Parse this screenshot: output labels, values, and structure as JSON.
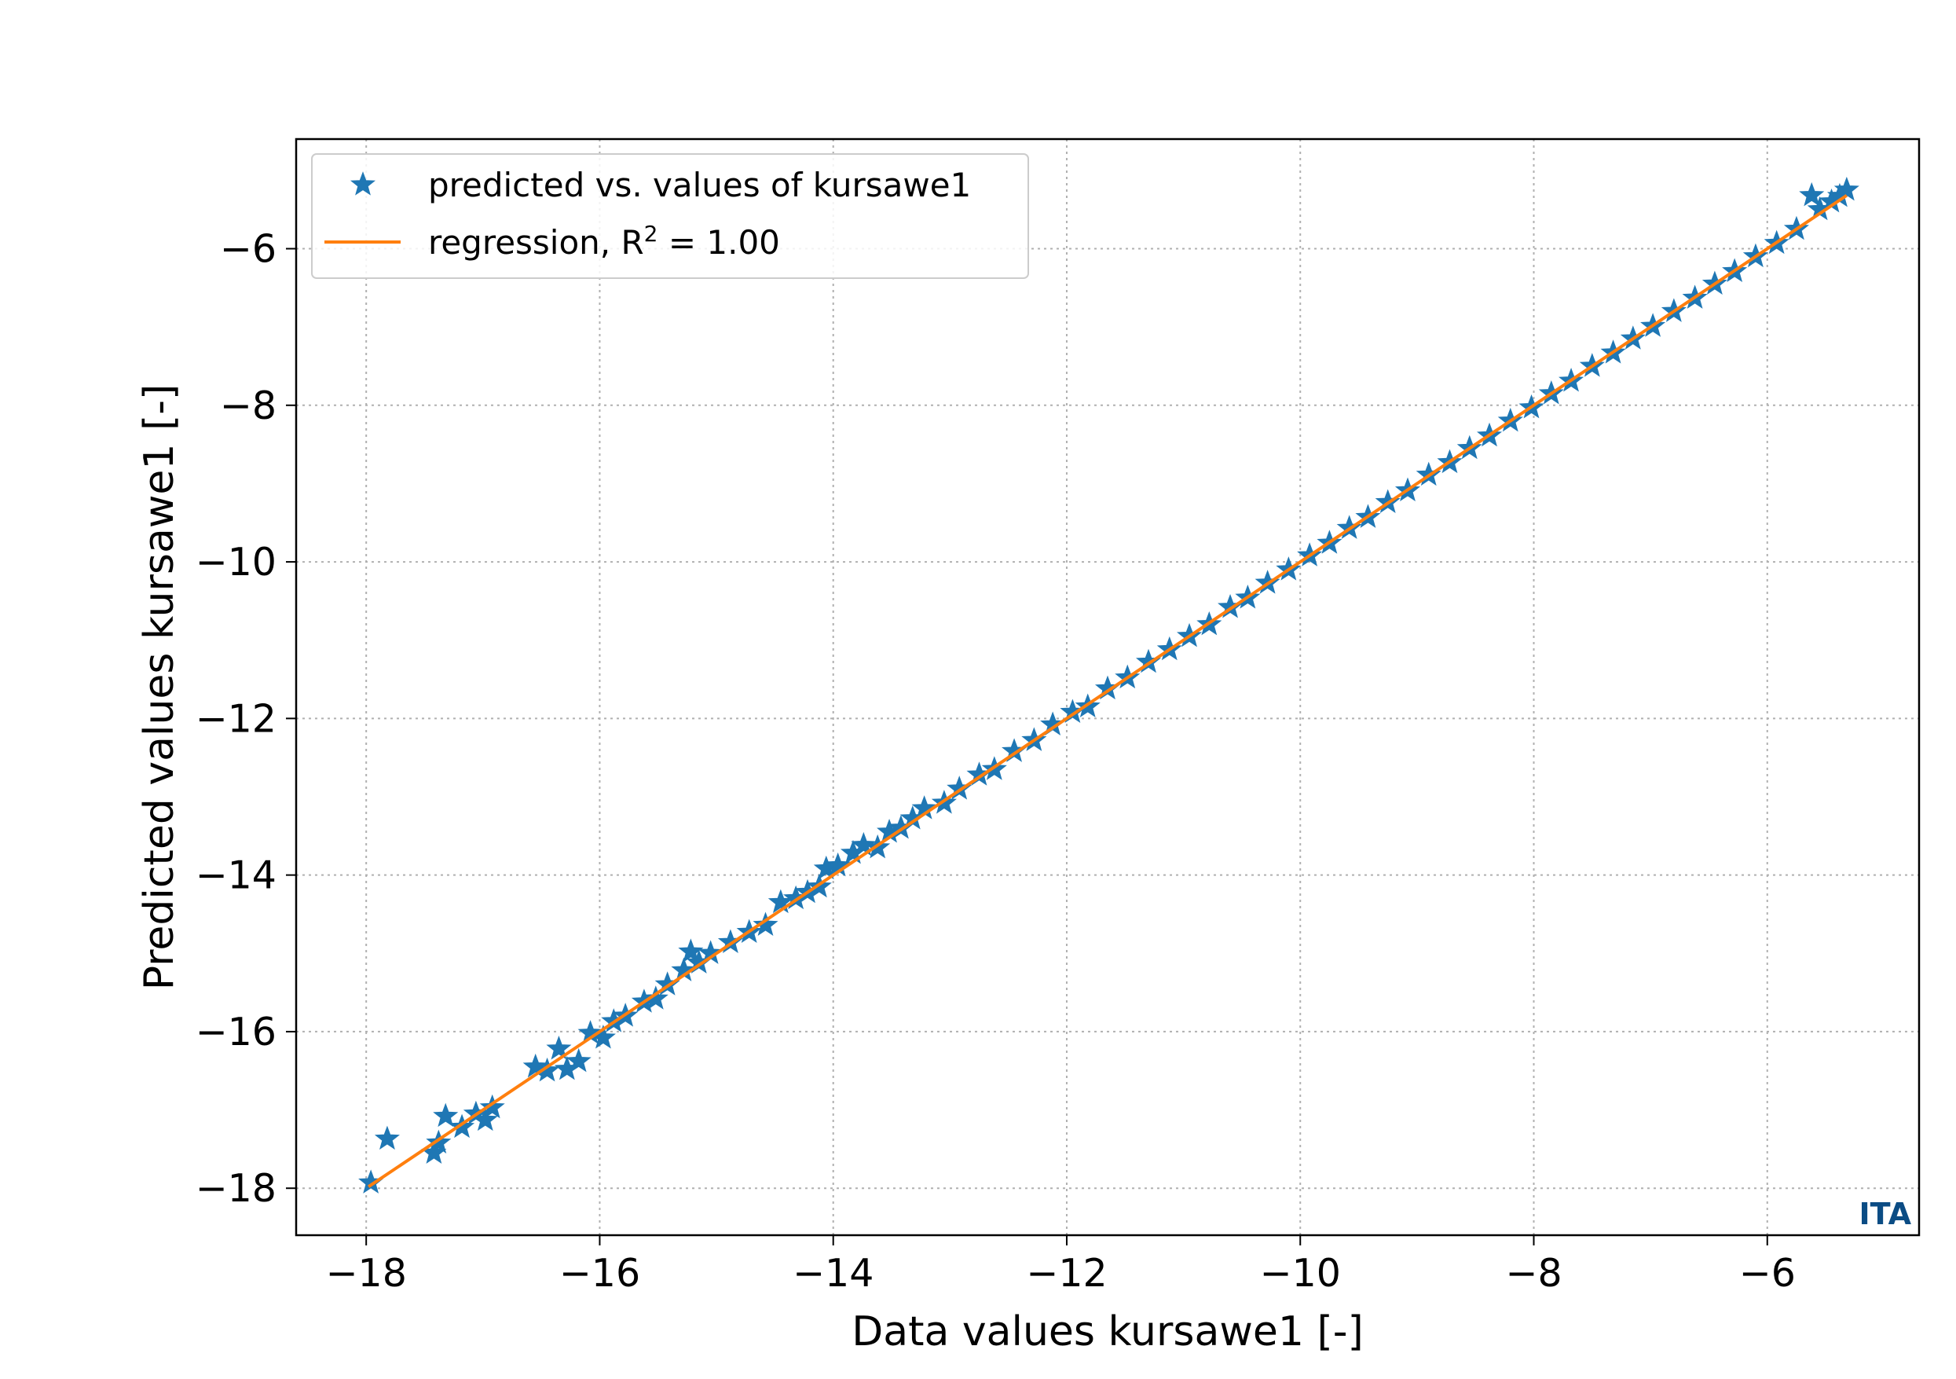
{
  "chart_data": {
    "type": "scatter",
    "xlabel": "Data values kursawe1 [-]",
    "ylabel": "Predicted values kursawe1 [-]",
    "xlim": [
      -18.6,
      -4.7
    ],
    "ylim": [
      -18.6,
      -4.6
    ],
    "xticks": [
      -18,
      -16,
      -14,
      -12,
      -10,
      -8,
      -6
    ],
    "yticks": [
      -18,
      -16,
      -14,
      -12,
      -10,
      -8,
      -6
    ],
    "xtick_labels": [
      "−18",
      "−16",
      "−14",
      "−12",
      "−10",
      "−8",
      "−6"
    ],
    "ytick_labels": [
      "−18",
      "−16",
      "−14",
      "−12",
      "−10",
      "−8",
      "−6"
    ],
    "grid": true,
    "legend_position": "upper-left",
    "colors": {
      "points": "#1f77b4",
      "regression": "#ff7f0e",
      "grid": "#b0b0b0",
      "watermark": "#0b4c84"
    },
    "series": [
      {
        "name": "predicted vs. values of kursawe1",
        "marker": "star",
        "points": [
          [
            -17.96,
            -17.93
          ],
          [
            -17.82,
            -17.37
          ],
          [
            -17.42,
            -17.55
          ],
          [
            -17.38,
            -17.42
          ],
          [
            -17.32,
            -17.08
          ],
          [
            -17.18,
            -17.22
          ],
          [
            -17.06,
            -17.05
          ],
          [
            -16.98,
            -17.13
          ],
          [
            -16.92,
            -16.97
          ],
          [
            -16.55,
            -16.45
          ],
          [
            -16.45,
            -16.5
          ],
          [
            -16.35,
            -16.22
          ],
          [
            -16.28,
            -16.48
          ],
          [
            -16.18,
            -16.38
          ],
          [
            -16.08,
            -16.02
          ],
          [
            -15.97,
            -16.08
          ],
          [
            -15.88,
            -15.87
          ],
          [
            -15.78,
            -15.8
          ],
          [
            -15.62,
            -15.62
          ],
          [
            -15.52,
            -15.58
          ],
          [
            -15.42,
            -15.4
          ],
          [
            -15.28,
            -15.22
          ],
          [
            -15.22,
            -14.98
          ],
          [
            -15.15,
            -15.12
          ],
          [
            -15.05,
            -15.0
          ],
          [
            -14.88,
            -14.86
          ],
          [
            -14.72,
            -14.73
          ],
          [
            -14.58,
            -14.64
          ],
          [
            -14.45,
            -14.35
          ],
          [
            -14.32,
            -14.3
          ],
          [
            -14.22,
            -14.22
          ],
          [
            -14.12,
            -14.15
          ],
          [
            -14.06,
            -13.92
          ],
          [
            -13.96,
            -13.88
          ],
          [
            -13.83,
            -13.72
          ],
          [
            -13.74,
            -13.62
          ],
          [
            -13.62,
            -13.65
          ],
          [
            -13.52,
            -13.45
          ],
          [
            -13.42,
            -13.4
          ],
          [
            -13.32,
            -13.28
          ],
          [
            -13.22,
            -13.15
          ],
          [
            -13.05,
            -13.08
          ],
          [
            -12.92,
            -12.9
          ],
          [
            -12.75,
            -12.72
          ],
          [
            -12.62,
            -12.65
          ],
          [
            -12.45,
            -12.42
          ],
          [
            -12.28,
            -12.28
          ],
          [
            -12.12,
            -12.08
          ],
          [
            -11.95,
            -11.92
          ],
          [
            -11.82,
            -11.85
          ],
          [
            -11.65,
            -11.62
          ],
          [
            -11.48,
            -11.48
          ],
          [
            -11.3,
            -11.28
          ],
          [
            -11.12,
            -11.12
          ],
          [
            -10.95,
            -10.95
          ],
          [
            -10.78,
            -10.8
          ],
          [
            -10.6,
            -10.58
          ],
          [
            -10.45,
            -10.46
          ],
          [
            -10.28,
            -10.27
          ],
          [
            -10.1,
            -10.1
          ],
          [
            -9.92,
            -9.92
          ],
          [
            -9.75,
            -9.76
          ],
          [
            -9.58,
            -9.57
          ],
          [
            -9.42,
            -9.43
          ],
          [
            -9.25,
            -9.24
          ],
          [
            -9.08,
            -9.09
          ],
          [
            -8.9,
            -8.89
          ],
          [
            -8.72,
            -8.73
          ],
          [
            -8.55,
            -8.55
          ],
          [
            -8.38,
            -8.39
          ],
          [
            -8.2,
            -8.2
          ],
          [
            -8.02,
            -8.03
          ],
          [
            -7.85,
            -7.85
          ],
          [
            -7.68,
            -7.69
          ],
          [
            -7.5,
            -7.5
          ],
          [
            -7.32,
            -7.33
          ],
          [
            -7.15,
            -7.15
          ],
          [
            -6.98,
            -6.99
          ],
          [
            -6.8,
            -6.8
          ],
          [
            -6.62,
            -6.63
          ],
          [
            -6.45,
            -6.45
          ],
          [
            -6.28,
            -6.29
          ],
          [
            -6.1,
            -6.1
          ],
          [
            -5.92,
            -5.93
          ],
          [
            -5.75,
            -5.75
          ],
          [
            -5.62,
            -5.32
          ],
          [
            -5.55,
            -5.5
          ],
          [
            -5.45,
            -5.4
          ],
          [
            -5.38,
            -5.33
          ],
          [
            -5.32,
            -5.25
          ]
        ]
      },
      {
        "name": "regression",
        "label_suffix": ", R",
        "r2_superscript": "2",
        "r2_text": " = 1.00",
        "marker": "line",
        "line": [
          [
            -17.98,
            -17.98
          ],
          [
            -5.32,
            -5.32
          ]
        ]
      }
    ]
  },
  "watermark": "ITA"
}
